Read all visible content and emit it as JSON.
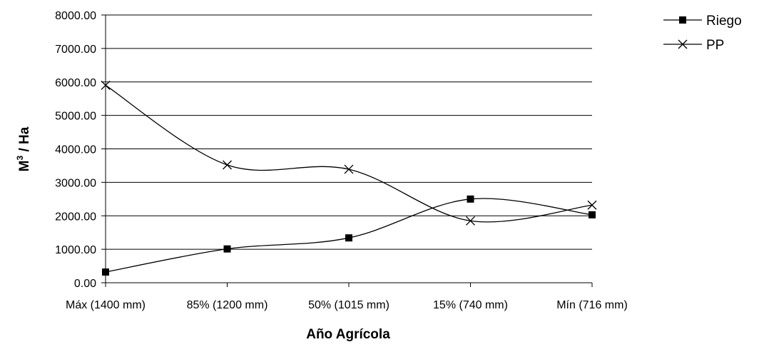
{
  "chart_data": {
    "type": "line",
    "title": "",
    "xlabel": "Año Agrícola",
    "ylabel_main": "M",
    "ylabel_sup": "3",
    "ylabel_rest": " / Ha",
    "categories": [
      "Máx (1400 mm)",
      "85% (1200 mm)",
      "50% (1015 mm)",
      "15% (740 mm)",
      "Mín (716 mm)"
    ],
    "ylim": [
      0,
      8000
    ],
    "yticks": [
      "0.00",
      "1000.00",
      "2000.00",
      "3000.00",
      "4000.00",
      "5000.00",
      "6000.00",
      "7000.00",
      "8000.00"
    ],
    "grid": true,
    "legend_position": "top-right",
    "smooth": true,
    "series": [
      {
        "name": "Riego",
        "marker": "square",
        "color": "#000000",
        "values": [
          320,
          1010,
          1340,
          2500,
          2030
        ]
      },
      {
        "name": "PP",
        "marker": "x",
        "color": "#000000",
        "values": [
          5900,
          3520,
          3390,
          1850,
          2320
        ]
      }
    ]
  }
}
